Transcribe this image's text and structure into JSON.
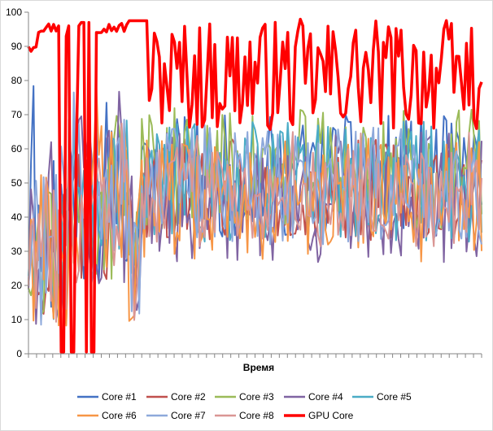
{
  "chart_data": {
    "type": "line",
    "title": "",
    "xlabel": "Время",
    "ylabel": "",
    "ylim": [
      0,
      100
    ],
    "yticks": [
      0,
      10,
      20,
      30,
      40,
      50,
      60,
      70,
      80,
      90,
      100
    ],
    "grid": false,
    "legend_position": "bottom",
    "x_points": 181,
    "colors": {
      "Core #1": "#4472C4",
      "Core #2": "#C0504D",
      "Core #3": "#9BBB59",
      "Core #4": "#8064A2",
      "Core #5": "#4BACC6",
      "Core #6": "#F79646",
      "Core #7": "#8EA9DB",
      "Core #8": "#DA9694",
      "GPU Core": "#FF0000"
    },
    "series": [
      {
        "name": "Core #1",
        "summary": "startup 5–88, steady 35–75 around 50"
      },
      {
        "name": "Core #2",
        "summary": "startup 5–80, steady 35–65 around 48"
      },
      {
        "name": "Core #3",
        "summary": "startup peaks to 97, steady 38–76 around 55"
      },
      {
        "name": "Core #4",
        "summary": "steady 17–68 around 45"
      },
      {
        "name": "Core #5",
        "summary": "steady 30–75 around 50"
      },
      {
        "name": "Core #6",
        "summary": "steady 22–66 around 45"
      },
      {
        "name": "Core #7",
        "summary": "steady 30–76 around 50"
      },
      {
        "name": "Core #8",
        "summary": "steady 25–73 around 48"
      },
      {
        "name": "GPU Core",
        "summary": "early ~94–98 with drops to 0, later 64–98"
      }
    ],
    "legend": [
      "Core #1",
      "Core #2",
      "Core #3",
      "Core #4",
      "Core #5",
      "Core #6",
      "Core #7",
      "Core #8",
      "GPU Core"
    ]
  }
}
